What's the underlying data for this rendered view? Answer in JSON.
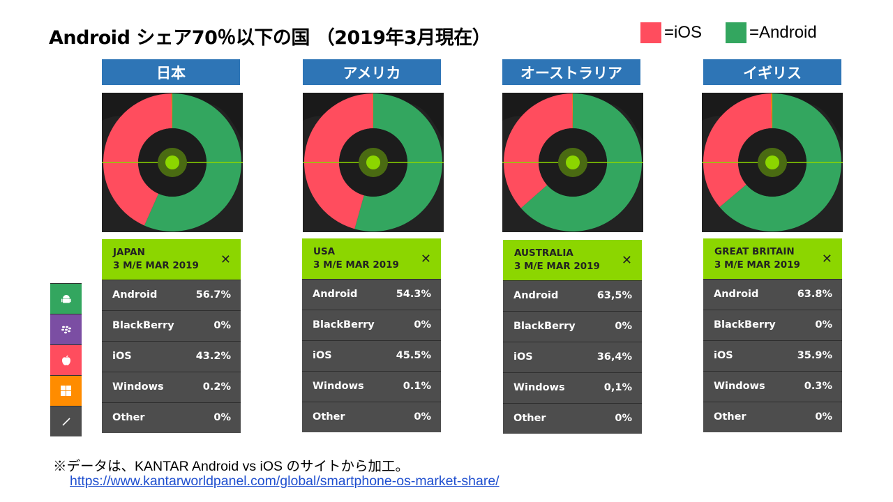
{
  "title": "Android シェア70％以下の国 （2019年3月現在）",
  "legend": [
    {
      "label": "=iOS",
      "color": "#ff4d5e"
    },
    {
      "label": "=Android",
      "color": "#33a65f"
    }
  ],
  "colors": {
    "ios": "#ff4d5e",
    "android": "#33a65f",
    "header": "#2e75b6",
    "card_head": "#8cd600"
  },
  "sidebar_icons": [
    {
      "icon": "android-icon",
      "color": "#33a65f"
    },
    {
      "icon": "blackberry-icon",
      "color": "#7b4ea3"
    },
    {
      "icon": "apple-icon",
      "color": "#ff4d5e"
    },
    {
      "icon": "windows-icon",
      "color": "#ff8c00"
    },
    {
      "icon": "other-icon",
      "color": "#4d4d4d"
    }
  ],
  "chart_data": [
    {
      "type": "pie",
      "country_label": "日本",
      "region": "JAPAN",
      "period": "3 M/E MAR 2019",
      "slices": [
        {
          "name": "Android",
          "display": "56.7%",
          "value": 56.7
        },
        {
          "name": "BlackBerry",
          "display": "0%",
          "value": 0
        },
        {
          "name": "iOS",
          "display": "43.2%",
          "value": 43.2
        },
        {
          "name": "Windows",
          "display": "0.2%",
          "value": 0.2
        },
        {
          "name": "Other",
          "display": "0%",
          "value": 0
        }
      ]
    },
    {
      "type": "pie",
      "country_label": "アメリカ",
      "region": "USA",
      "period": "3 M/E MAR 2019",
      "slices": [
        {
          "name": "Android",
          "display": "54.3%",
          "value": 54.3
        },
        {
          "name": "BlackBerry",
          "display": "0%",
          "value": 0
        },
        {
          "name": "iOS",
          "display": "45.5%",
          "value": 45.5
        },
        {
          "name": "Windows",
          "display": "0.1%",
          "value": 0.1
        },
        {
          "name": "Other",
          "display": "0%",
          "value": 0
        }
      ]
    },
    {
      "type": "pie",
      "country_label": "オーストラリア",
      "region": "AUSTRALIA",
      "period": "3 M/E MAR 2019",
      "slices": [
        {
          "name": "Android",
          "display": "63,5%",
          "value": 63.5
        },
        {
          "name": "BlackBerry",
          "display": "0%",
          "value": 0
        },
        {
          "name": "iOS",
          "display": "36,4%",
          "value": 36.4
        },
        {
          "name": "Windows",
          "display": "0,1%",
          "value": 0.1
        },
        {
          "name": "Other",
          "display": "0%",
          "value": 0
        }
      ]
    },
    {
      "type": "pie",
      "country_label": "イギリス",
      "region": "GREAT BRITAIN",
      "period": "3 M/E MAR 2019",
      "slices": [
        {
          "name": "Android",
          "display": "63.8%",
          "value": 63.8
        },
        {
          "name": "BlackBerry",
          "display": "0%",
          "value": 0
        },
        {
          "name": "iOS",
          "display": "35.9%",
          "value": 35.9
        },
        {
          "name": "Windows",
          "display": "0.3%",
          "value": 0.3
        },
        {
          "name": "Other",
          "display": "0%",
          "value": 0
        }
      ]
    }
  ],
  "close_glyph": "✕",
  "footnote": "※データは、KANTAR Android vs iOS のサイトから加工。",
  "link": "https://www.kantarworldpanel.com/global/smartphone-os-market-share/"
}
